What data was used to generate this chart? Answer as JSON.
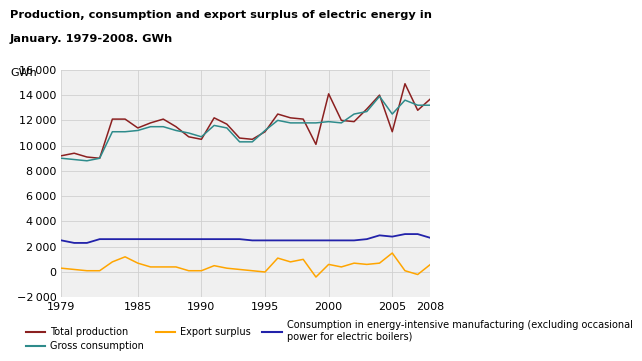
{
  "title_line1": "Production, consumption and export surplus of electric energy in",
  "title_line2": "January. 1979-2008. GWh",
  "ylabel": "GWh",
  "years": [
    1979,
    1980,
    1981,
    1982,
    1983,
    1984,
    1985,
    1986,
    1987,
    1988,
    1989,
    1990,
    1991,
    1992,
    1993,
    1994,
    1995,
    1996,
    1997,
    1998,
    1999,
    2000,
    2001,
    2002,
    2003,
    2004,
    2005,
    2006,
    2007,
    2008
  ],
  "total_production": [
    9200,
    9400,
    9100,
    9000,
    12100,
    12100,
    11400,
    11800,
    12100,
    11500,
    10700,
    10500,
    12200,
    11700,
    10600,
    10500,
    11100,
    12500,
    12200,
    12100,
    10100,
    14100,
    12000,
    11900,
    12900,
    14000,
    11100,
    14900,
    12800,
    13700
  ],
  "gross_consumption": [
    9000,
    8900,
    8800,
    9000,
    11100,
    11100,
    11200,
    11500,
    11500,
    11200,
    11000,
    10700,
    11600,
    11400,
    10300,
    10300,
    11200,
    12000,
    11800,
    11800,
    11800,
    11900,
    11800,
    12500,
    12700,
    13900,
    12500,
    13600,
    13200,
    13200
  ],
  "export_surplus": [
    300,
    200,
    100,
    100,
    800,
    1200,
    700,
    400,
    400,
    400,
    100,
    100,
    500,
    300,
    200,
    100,
    0,
    1100,
    800,
    1000,
    -400,
    600,
    400,
    700,
    600,
    700,
    1500,
    100,
    -200,
    600
  ],
  "energy_intensive": [
    2500,
    2300,
    2300,
    2600,
    2600,
    2600,
    2600,
    2600,
    2600,
    2600,
    2600,
    2600,
    2600,
    2600,
    2600,
    2500,
    2500,
    2500,
    2500,
    2500,
    2500,
    2500,
    2500,
    2500,
    2600,
    2900,
    2800,
    3000,
    3000,
    2700
  ],
  "color_production": "#8B2020",
  "color_gross": "#2E8B8B",
  "color_export": "#FFA500",
  "color_energy": "#2222AA",
  "ylim": [
    -2000,
    16000
  ],
  "yticks": [
    -2000,
    0,
    2000,
    4000,
    6000,
    8000,
    10000,
    12000,
    14000,
    16000
  ],
  "xticks": [
    1979,
    1985,
    1990,
    1995,
    2000,
    2005,
    2008
  ],
  "grid_color": "#d0d0d0",
  "background_color": "#f0f0f0"
}
